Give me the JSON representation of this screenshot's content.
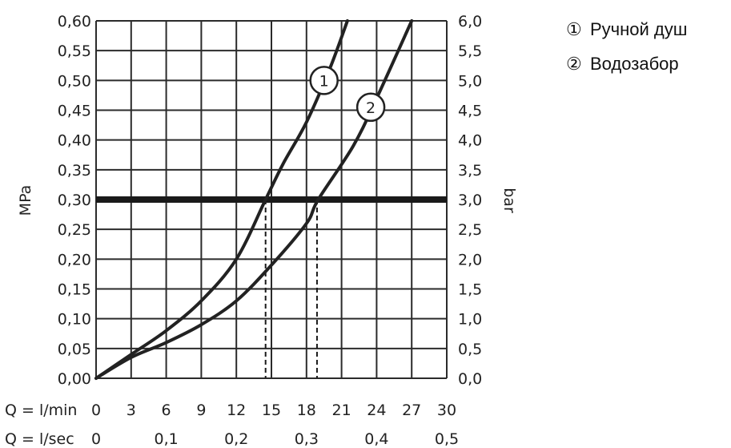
{
  "chart_data": {
    "type": "line",
    "y_left": {
      "label": "MPa",
      "range": [
        0,
        0.6
      ],
      "ticks": [
        "0,00",
        "0,05",
        "0,10",
        "0,15",
        "0,20",
        "0,25",
        "0,30",
        "0,35",
        "0,40",
        "0,45",
        "0,50",
        "0,55",
        "0,60"
      ]
    },
    "y_right": {
      "label": "bar",
      "range": [
        0,
        6
      ],
      "ticks": [
        "0,0",
        "0,5",
        "1,0",
        "1,5",
        "2,0",
        "2,5",
        "3,0",
        "3,5",
        "4,0",
        "4,5",
        "5,0",
        "5,5",
        "6,0"
      ]
    },
    "x_min": {
      "label": "Q = l/min",
      "range": [
        0,
        30
      ],
      "ticks": [
        "0",
        "3",
        "6",
        "9",
        "12",
        "15",
        "18",
        "21",
        "24",
        "27",
        "30"
      ]
    },
    "x_sec": {
      "label": "Q = l/sec",
      "ticks": [
        {
          "text": "0",
          "value": 0
        },
        {
          "text": "0,1",
          "value": 0.1
        },
        {
          "text": "0,2",
          "value": 0.2
        },
        {
          "text": "0,3",
          "value": 0.3
        },
        {
          "text": "0,4",
          "value": 0.4
        },
        {
          "text": "0,5",
          "value": 0.5
        }
      ]
    },
    "grid": true,
    "reference_line": {
      "y_mpa": 0.3
    },
    "series": [
      {
        "marker": "1",
        "points": [
          [
            0,
            0
          ],
          [
            3,
            0.04
          ],
          [
            6,
            0.08
          ],
          [
            9,
            0.13
          ],
          [
            12,
            0.2
          ],
          [
            14.5,
            0.3
          ],
          [
            16,
            0.36
          ],
          [
            18,
            0.43
          ],
          [
            20,
            0.52
          ],
          [
            21.5,
            0.6
          ]
        ],
        "label_at": [
          19.5,
          0.5
        ],
        "drop_x": 14.5
      },
      {
        "marker": "2",
        "points": [
          [
            0,
            0
          ],
          [
            3,
            0.035
          ],
          [
            6,
            0.06
          ],
          [
            9,
            0.09
          ],
          [
            12,
            0.13
          ],
          [
            15,
            0.19
          ],
          [
            18,
            0.26
          ],
          [
            19,
            0.3
          ],
          [
            22,
            0.39
          ],
          [
            24,
            0.47
          ],
          [
            27,
            0.6
          ]
        ],
        "label_at": [
          23.5,
          0.455
        ],
        "drop_x": 18.9
      }
    ]
  },
  "legend": [
    {
      "symbol": "①",
      "text": "Ручной душ"
    },
    {
      "symbol": "②",
      "text": "Водозабор"
    }
  ]
}
